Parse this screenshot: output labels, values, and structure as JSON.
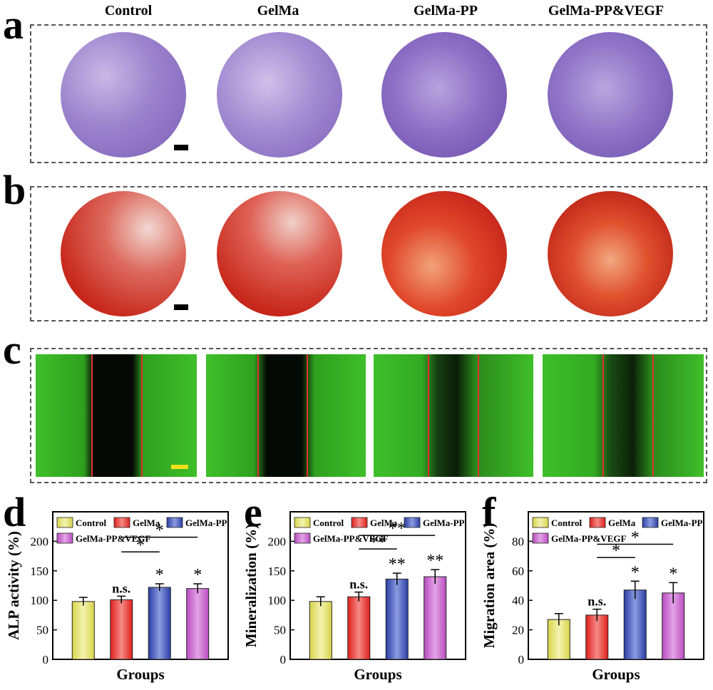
{
  "panels": {
    "a": "a",
    "b": "b",
    "c": "c",
    "d": "d",
    "e": "e",
    "f": "f"
  },
  "groups": [
    "Control",
    "GelMa",
    "GelMa-PP",
    "GelMa-PP&VEGF"
  ],
  "colors": {
    "control": "#d8d44a",
    "gelma": "#e0201c",
    "gelma_pp": "#2a3fa6",
    "gelma_pp_vegf": "#b94cc0",
    "crystal_violet": "#7d5fb8",
    "alizarin_red": "#c8281c",
    "migration_green": "#3fbf2a",
    "migration_line": "#e03030",
    "scale_bar_black": "#000000",
    "scale_bar_yellow": "#f2e21a"
  },
  "chart_data": [
    {
      "panel": "d",
      "type": "bar",
      "categories": [
        "Control",
        "GelMa",
        "GelMa-PP",
        "GelMa-PP&VEGF"
      ],
      "values": [
        98,
        101,
        122,
        120
      ],
      "errors": [
        7,
        6,
        6,
        8
      ],
      "xlabel": "Groups",
      "ylabel": "ALP activity (%)",
      "ylim": [
        0,
        250
      ],
      "yticks": [
        0,
        50,
        100,
        150,
        200
      ],
      "bar_labels": [
        "",
        "n.s.",
        "*",
        "*"
      ],
      "brackets": [
        {
          "from": 1,
          "to": 2,
          "level": 182,
          "label": "*"
        },
        {
          "from": 1,
          "to": 3,
          "level": 207,
          "label": "*"
        }
      ],
      "legend": [
        "Control",
        "GelMa",
        "GelMa-PP",
        "GelMa-PP&VEGF"
      ],
      "legend_position": "top"
    },
    {
      "panel": "e",
      "type": "bar",
      "categories": [
        "Control",
        "GelMa",
        "GelMa-PP",
        "GelMa-PP&VEGF"
      ],
      "values": [
        98,
        106,
        136,
        140
      ],
      "errors": [
        8,
        8,
        10,
        12
      ],
      "xlabel": "Groups",
      "ylabel": "Mineralization (%)",
      "ylim": [
        0,
        250
      ],
      "yticks": [
        0,
        50,
        100,
        150,
        200
      ],
      "bar_labels": [
        "",
        "n.s.",
        "**",
        "**"
      ],
      "brackets": [
        {
          "from": 1,
          "to": 2,
          "level": 187,
          "label": "**"
        },
        {
          "from": 1,
          "to": 3,
          "level": 210,
          "label": "**"
        }
      ],
      "legend": [
        "Control",
        "GelMa",
        "GelMa-PP",
        "GelMa-PP&VEGF"
      ],
      "legend_position": "top"
    },
    {
      "panel": "f",
      "type": "bar",
      "categories": [
        "Control",
        "GelMa",
        "GelMa-PP",
        "GelMa-PP&VEGF"
      ],
      "values": [
        27,
        30,
        47,
        45
      ],
      "errors": [
        4,
        4,
        6,
        7
      ],
      "xlabel": "Groups",
      "ylabel": "Migration area (%)",
      "ylim": [
        0,
        100
      ],
      "yticks": [
        0,
        20,
        40,
        60,
        80
      ],
      "bar_labels": [
        "",
        "n.s.",
        "*",
        "*"
      ],
      "brackets": [
        {
          "from": 1,
          "to": 2,
          "level": 69,
          "label": "*"
        },
        {
          "from": 1,
          "to": 3,
          "level": 78,
          "label": "*"
        }
      ],
      "legend": [
        "Control",
        "GelMa",
        "GelMa-PP",
        "GelMa-PP&VEGF"
      ],
      "legend_position": "top"
    }
  ]
}
